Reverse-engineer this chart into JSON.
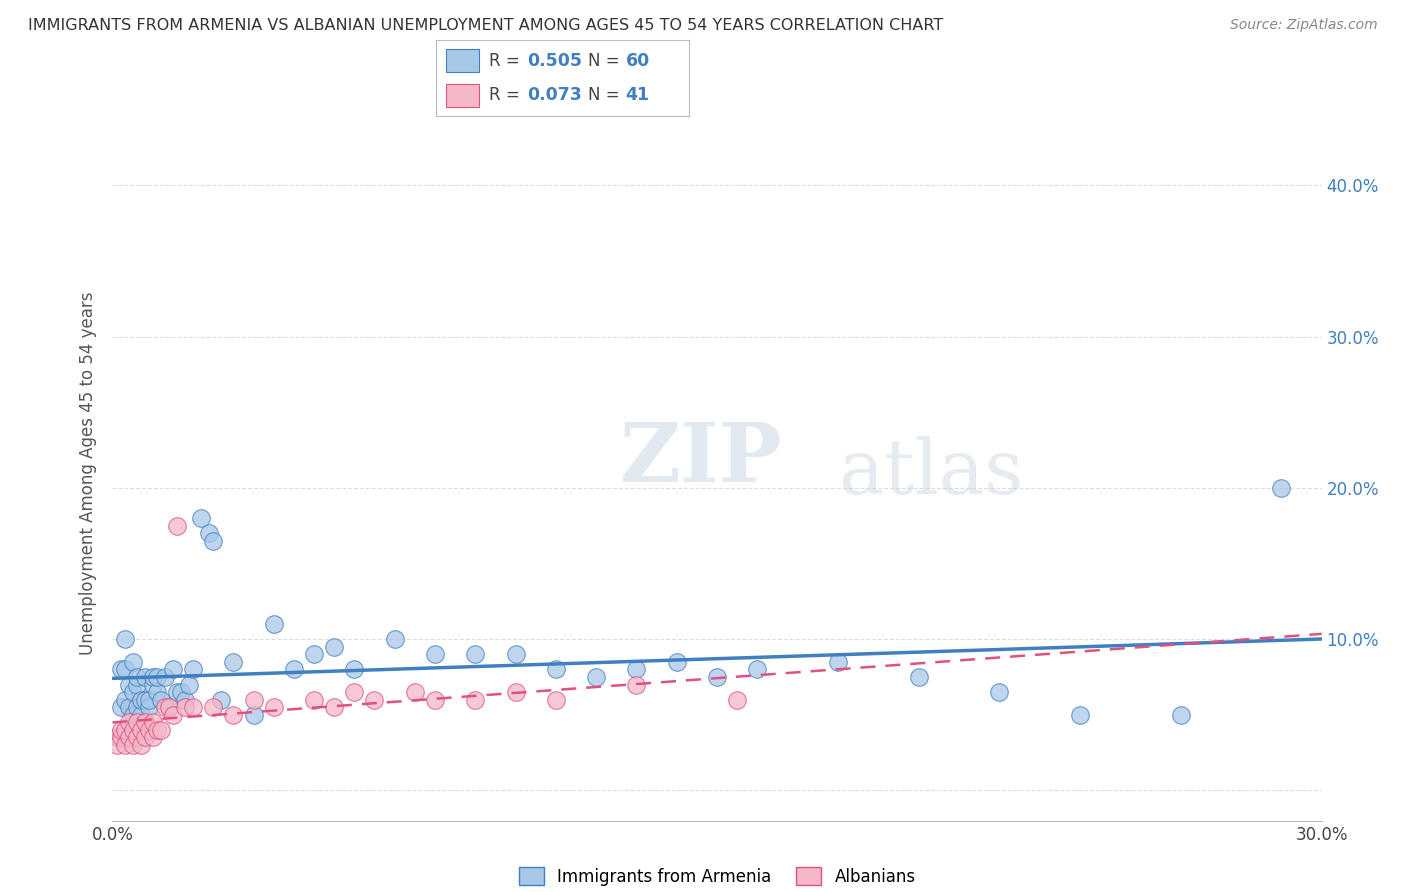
{
  "title": "IMMIGRANTS FROM ARMENIA VS ALBANIAN UNEMPLOYMENT AMONG AGES 45 TO 54 YEARS CORRELATION CHART",
  "source": "Source: ZipAtlas.com",
  "ylabel": "Unemployment Among Ages 45 to 54 years",
  "xlim": [
    0.0,
    0.3
  ],
  "ylim": [
    -0.02,
    0.44
  ],
  "xticks": [
    0.0,
    0.05,
    0.1,
    0.15,
    0.2,
    0.25,
    0.3
  ],
  "yticks": [
    0.0,
    0.1,
    0.2,
    0.3,
    0.4
  ],
  "color_blue": "#a8c8e8",
  "color_pink": "#f4b8c8",
  "line_blue": "#4080c0",
  "line_pink": "#e05080",
  "watermark_zip": "ZIP",
  "watermark_atlas": "atlas",
  "blue_scatter_x": [
    0.001,
    0.002,
    0.002,
    0.003,
    0.003,
    0.003,
    0.004,
    0.004,
    0.005,
    0.005,
    0.005,
    0.006,
    0.006,
    0.006,
    0.007,
    0.007,
    0.008,
    0.008,
    0.009,
    0.009,
    0.01,
    0.01,
    0.011,
    0.011,
    0.012,
    0.013,
    0.014,
    0.015,
    0.016,
    0.017,
    0.018,
    0.019,
    0.02,
    0.022,
    0.024,
    0.025,
    0.027,
    0.03,
    0.035,
    0.04,
    0.045,
    0.05,
    0.055,
    0.06,
    0.07,
    0.08,
    0.09,
    0.1,
    0.11,
    0.12,
    0.13,
    0.14,
    0.15,
    0.16,
    0.18,
    0.2,
    0.22,
    0.24,
    0.265,
    0.29
  ],
  "blue_scatter_y": [
    0.035,
    0.055,
    0.08,
    0.06,
    0.08,
    0.1,
    0.055,
    0.07,
    0.05,
    0.065,
    0.085,
    0.055,
    0.07,
    0.075,
    0.05,
    0.06,
    0.06,
    0.075,
    0.055,
    0.06,
    0.07,
    0.075,
    0.065,
    0.075,
    0.06,
    0.075,
    0.055,
    0.08,
    0.065,
    0.065,
    0.06,
    0.07,
    0.08,
    0.18,
    0.17,
    0.165,
    0.06,
    0.085,
    0.05,
    0.11,
    0.08,
    0.09,
    0.095,
    0.08,
    0.1,
    0.09,
    0.09,
    0.09,
    0.08,
    0.075,
    0.08,
    0.085,
    0.075,
    0.08,
    0.085,
    0.075,
    0.065,
    0.05,
    0.05,
    0.2
  ],
  "pink_scatter_x": [
    0.001,
    0.002,
    0.002,
    0.003,
    0.003,
    0.004,
    0.004,
    0.005,
    0.005,
    0.006,
    0.006,
    0.007,
    0.007,
    0.008,
    0.008,
    0.009,
    0.01,
    0.01,
    0.011,
    0.012,
    0.013,
    0.014,
    0.015,
    0.016,
    0.018,
    0.02,
    0.025,
    0.03,
    0.035,
    0.04,
    0.05,
    0.055,
    0.06,
    0.065,
    0.075,
    0.08,
    0.09,
    0.1,
    0.11,
    0.13,
    0.155
  ],
  "pink_scatter_y": [
    0.03,
    0.035,
    0.04,
    0.03,
    0.04,
    0.035,
    0.045,
    0.03,
    0.04,
    0.035,
    0.045,
    0.03,
    0.04,
    0.035,
    0.045,
    0.04,
    0.035,
    0.045,
    0.04,
    0.04,
    0.055,
    0.055,
    0.05,
    0.175,
    0.055,
    0.055,
    0.055,
    0.05,
    0.06,
    0.055,
    0.06,
    0.055,
    0.065,
    0.06,
    0.065,
    0.06,
    0.06,
    0.065,
    0.06,
    0.07,
    0.06
  ],
  "background_color": "#ffffff",
  "grid_color": "#dddddd"
}
